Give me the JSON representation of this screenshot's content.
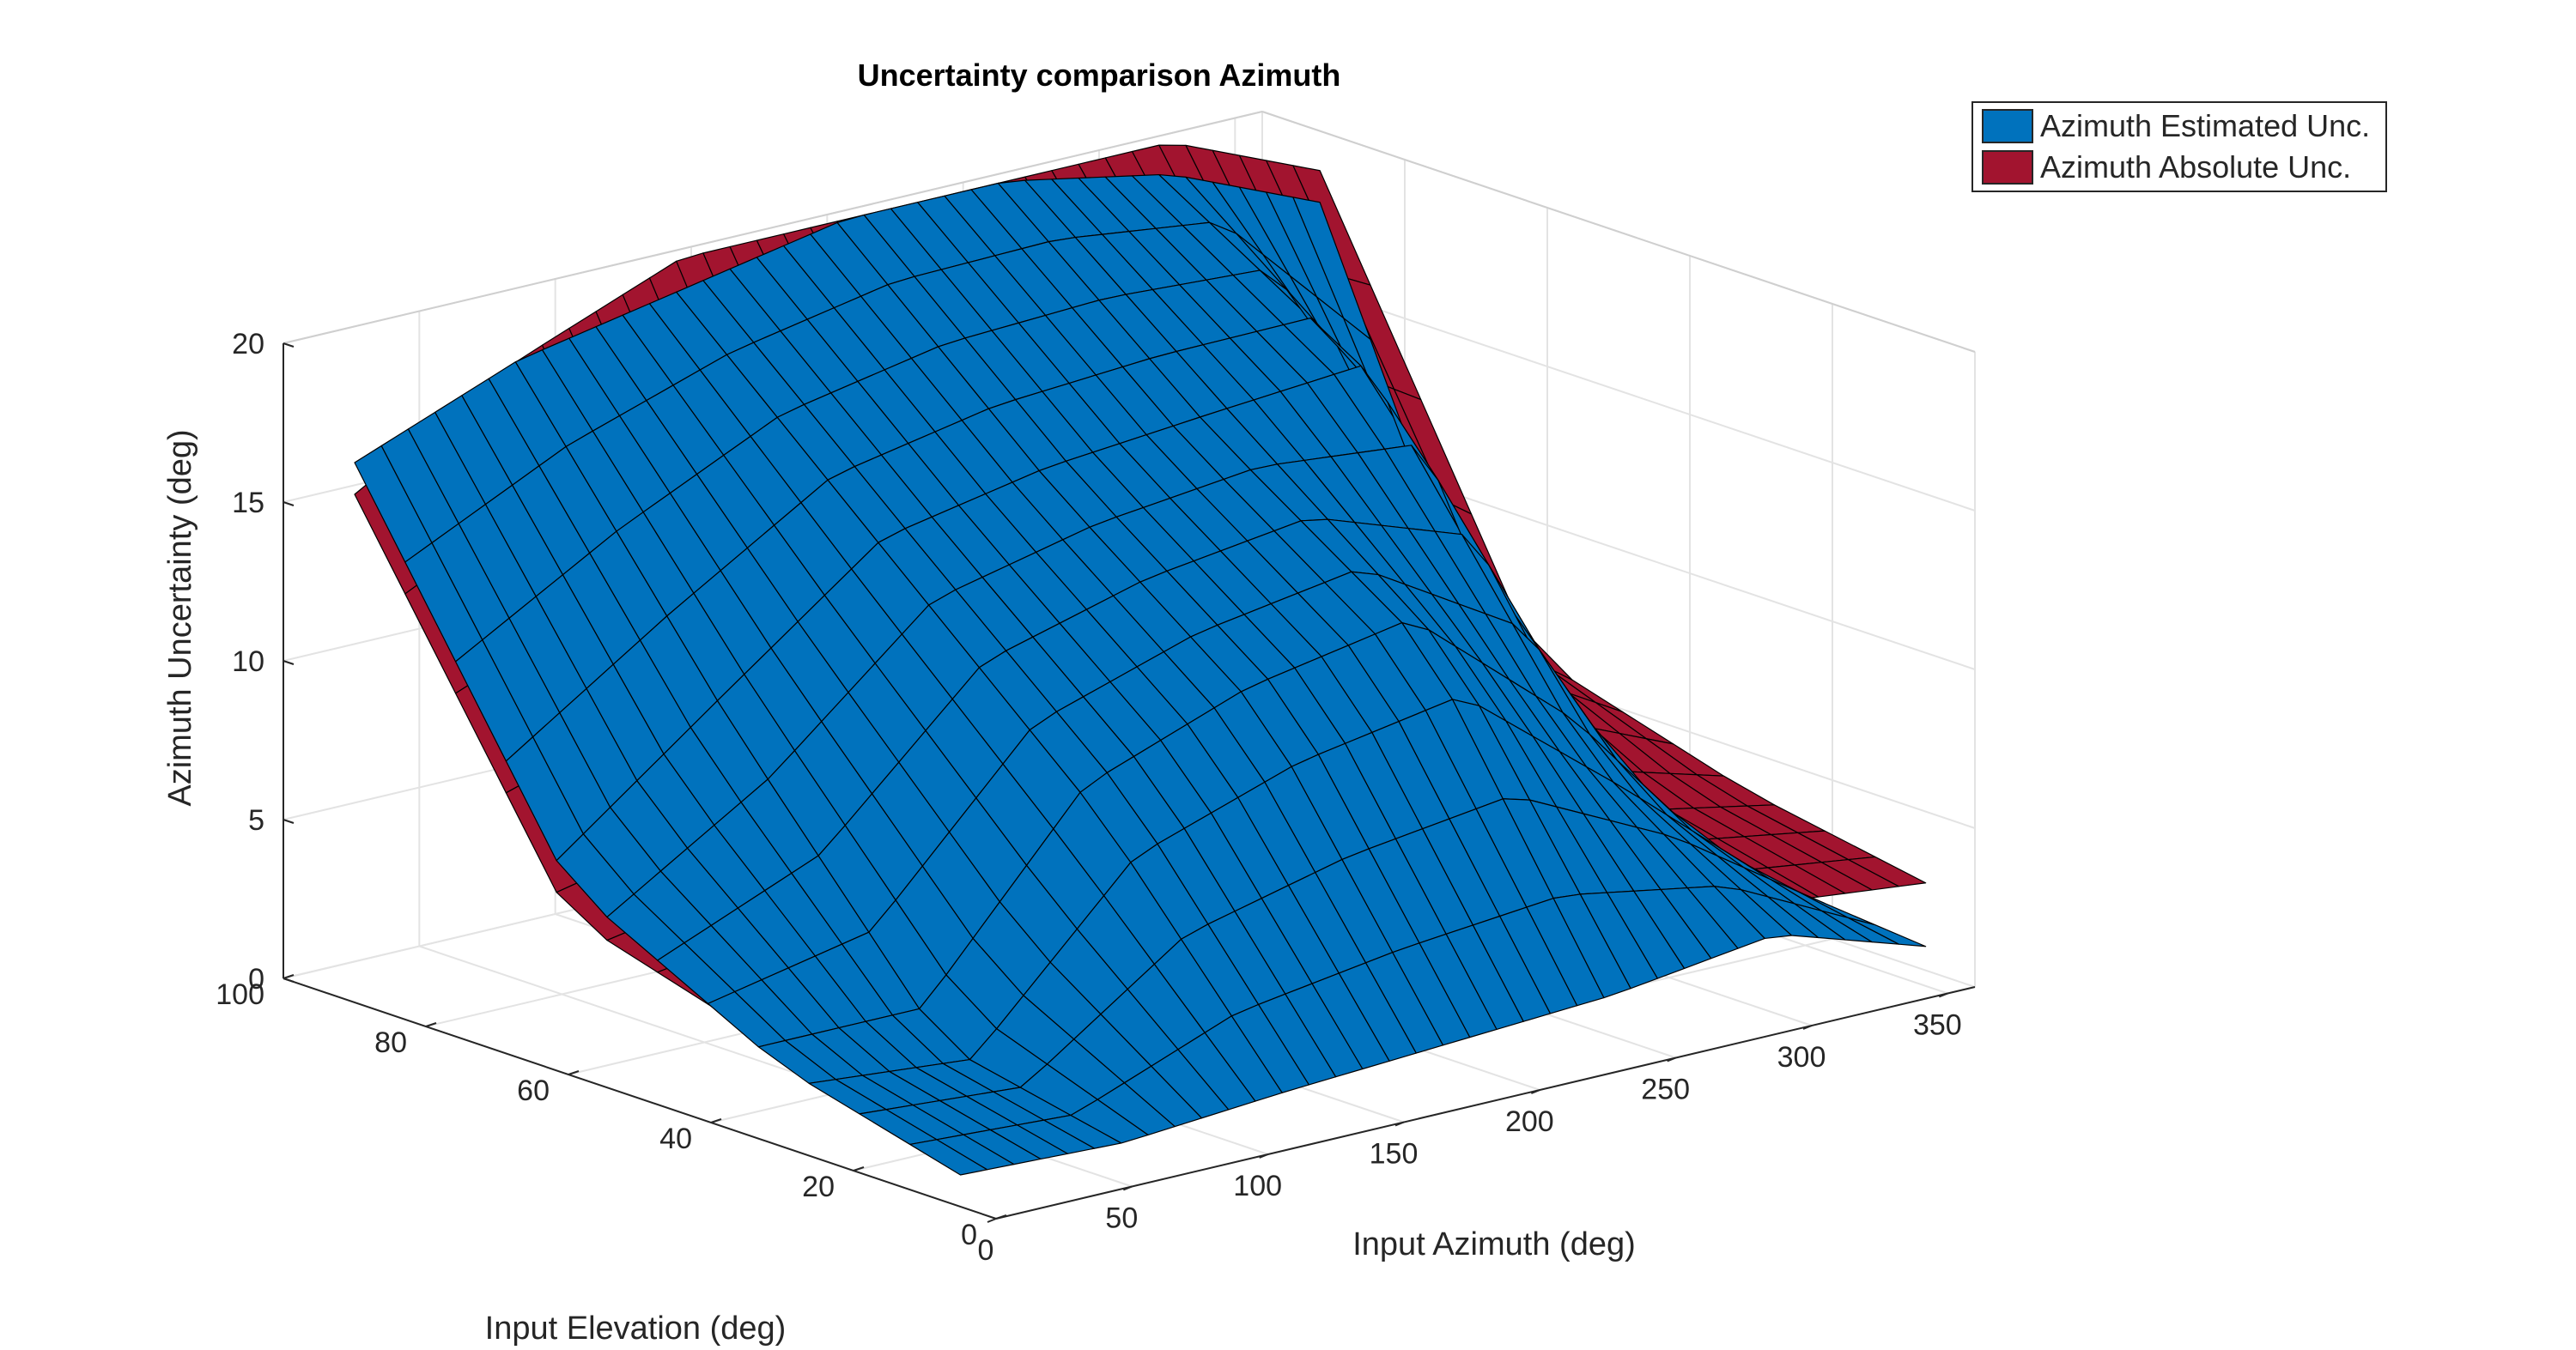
{
  "chart_data": {
    "type": "surface",
    "title": "Uncertainty comparison Azimuth",
    "xlabel": "Input Azimuth (deg)",
    "ylabel": "Input Elevation (deg)",
    "zlabel": "Azimuth  Uncertainty (deg)",
    "x_ticks": [
      0,
      50,
      100,
      150,
      200,
      250,
      300,
      350
    ],
    "y_ticks": [
      0,
      20,
      40,
      60,
      80,
      100
    ],
    "z_ticks": [
      0,
      5,
      10,
      15,
      20
    ],
    "xlim": [
      0,
      360
    ],
    "ylim": [
      0,
      100
    ],
    "zlim": [
      0,
      20
    ],
    "grid": true,
    "legend_position": "top-right",
    "series": [
      {
        "name": "Azimuth Estimated Unc.",
        "color": "#0072BD",
        "description_values": {
          "azimuth": [
            0,
            60,
            120,
            180,
            240,
            300,
            355
          ],
          "elevation": [
            5,
            30,
            60,
            90
          ],
          "uncertainty": [
            [
              1.0,
              0.8,
              1.2,
              1.5,
              1.8,
              2.5,
              1.0
            ],
            [
              2.5,
              2.0,
              8.0,
              10.0,
              11.0,
              6.0,
              1.5
            ],
            [
              6.0,
              10.0,
              14.0,
              15.0,
              15.5,
              16.0,
              2.0
            ],
            [
              17.0,
              19.0,
              20.0,
              21.0,
              21.0,
              20.0,
              18.0
            ]
          ]
        }
      },
      {
        "name": "Azimuth Absolute Unc.",
        "color": "#A2142F",
        "description_values": {
          "azimuth": [
            0,
            60,
            120,
            180,
            240,
            300,
            355
          ],
          "elevation": [
            5,
            30,
            60,
            90
          ],
          "uncertainty": [
            [
              1.5,
              2.0,
              2.5,
              2.0,
              3.0,
              3.5,
              3.0
            ],
            [
              3.0,
              3.5,
              4.0,
              3.5,
              4.5,
              5.0,
              4.0
            ],
            [
              5.0,
              6.0,
              7.0,
              8.0,
              9.0,
              10.0,
              6.0
            ],
            [
              16.0,
              19.0,
              21.0,
              22.0,
              22.0,
              21.0,
              19.0
            ]
          ]
        }
      }
    ]
  }
}
